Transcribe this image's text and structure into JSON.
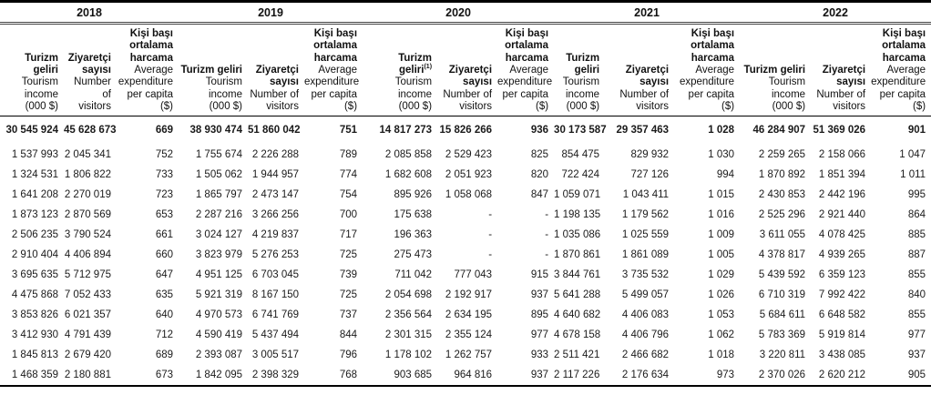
{
  "table": {
    "years": [
      "2018",
      "2019",
      "2020",
      "2021",
      "2022"
    ],
    "headers": [
      {
        "tr": [
          "Turizm geliri"
        ],
        "en": [
          "Tourism",
          "income",
          "(000 $)"
        ]
      },
      {
        "tr": [
          "Ziyaretçi",
          "sayısı"
        ],
        "en": [
          "Number of",
          "visitors"
        ]
      },
      {
        "tr": [
          "Kişi başı",
          "ortalama",
          "harcama"
        ],
        "en": [
          "Average",
          "expenditure",
          "per capita",
          "($)"
        ]
      },
      {
        "tr": [
          "Turizm geliri"
        ],
        "en": [
          "Tourism",
          "income",
          "(000 $)"
        ]
      },
      {
        "tr": [
          "Ziyaretçi",
          "sayısı"
        ],
        "en": [
          "Number of",
          "visitors"
        ]
      },
      {
        "tr": [
          "Kişi başı",
          "ortalama",
          "harcama"
        ],
        "en": [
          "Average",
          "expenditure",
          "per capita",
          "($)"
        ]
      },
      {
        "tr": [
          "Turizm geliri"
        ],
        "footnote": "(1)",
        "en": [
          "Tourism",
          "income",
          "(000 $)"
        ]
      },
      {
        "tr": [
          "Ziyaretçi",
          "sayısı"
        ],
        "en": [
          "Number of",
          "visitors"
        ]
      },
      {
        "tr": [
          "Kişi başı",
          "ortalama",
          "harcama"
        ],
        "en": [
          "Average",
          "expenditure",
          "per capita",
          "($)"
        ]
      },
      {
        "tr": [
          "Turizm",
          "geliri"
        ],
        "en": [
          "Tourism",
          "income",
          "(000 $)"
        ]
      },
      {
        "tr": [
          "Ziyaretçi",
          "sayısı"
        ],
        "en": [
          "Number of",
          "visitors"
        ]
      },
      {
        "tr": [
          "Kişi başı",
          "ortalama",
          "harcama"
        ],
        "en": [
          "Average",
          "expenditure",
          "per capita",
          "($)"
        ]
      },
      {
        "tr": [
          "Turizm geliri"
        ],
        "en": [
          "Tourism",
          "income",
          "(000 $)"
        ]
      },
      {
        "tr": [
          "Ziyaretçi",
          "sayısı"
        ],
        "en": [
          "Number of",
          "visitors"
        ]
      },
      {
        "tr": [
          "Kişi başı",
          "ortalama",
          "harcama"
        ],
        "en": [
          "Average",
          "expenditure",
          "per capita",
          "($)"
        ]
      }
    ],
    "total_row": [
      "30 545 924",
      "45 628 673",
      "669",
      "38 930 474",
      "51 860 042",
      "751",
      "14 817 273",
      "15 826 266",
      "936",
      "30 173 587",
      "29 357 463",
      "1 028",
      "46 284 907",
      "51 369 026",
      "901"
    ],
    "rows": [
      [
        "1 537 993",
        "2 045 341",
        "752",
        "1 755 674",
        "2 226 288",
        "789",
        "2 085 858",
        "2 529 423",
        "825",
        "854 475",
        "829 932",
        "1 030",
        "2 259 265",
        "2 158 066",
        "1 047"
      ],
      [
        "1 324 531",
        "1 806 822",
        "733",
        "1 505 062",
        "1 944 957",
        "774",
        "1 682 608",
        "2 051 923",
        "820",
        "722 424",
        "727 126",
        "994",
        "1 870 892",
        "1 851 394",
        "1 011"
      ],
      [
        "1 641 208",
        "2 270 019",
        "723",
        "1 865 797",
        "2 473 147",
        "754",
        "895 926",
        "1 058 068",
        "847",
        "1 059 071",
        "1 043 411",
        "1 015",
        "2 430 853",
        "2 442 196",
        "995"
      ],
      [
        "1 873 123",
        "2 870 569",
        "653",
        "2 287 216",
        "3 266 256",
        "700",
        "175 638",
        "-",
        "-",
        "1 198 135",
        "1 179 562",
        "1 016",
        "2 525 296",
        "2 921 440",
        "864"
      ],
      [
        "2 506 235",
        "3 790 524",
        "661",
        "3 024 127",
        "4 219 837",
        "717",
        "196 363",
        "-",
        "-",
        "1 035 086",
        "1 025 559",
        "1 009",
        "3 611 055",
        "4 078 425",
        "885"
      ],
      [
        "2 910 404",
        "4 406 894",
        "660",
        "3 823 979",
        "5 276 253",
        "725",
        "275 473",
        "-",
        "-",
        "1 870 861",
        "1 861 089",
        "1 005",
        "4 378 817",
        "4 939 265",
        "887"
      ],
      [
        "3 695 635",
        "5 712 975",
        "647",
        "4 951 125",
        "6 703 045",
        "739",
        "711 042",
        "777 043",
        "915",
        "3 844 761",
        "3 735 532",
        "1 029",
        "5 439 592",
        "6 359 123",
        "855"
      ],
      [
        "4 475 868",
        "7 052 433",
        "635",
        "5 921 319",
        "8 167 150",
        "725",
        "2 054 698",
        "2 192 917",
        "937",
        "5 641 288",
        "5 499 057",
        "1 026",
        "6 710 319",
        "7 992 422",
        "840"
      ],
      [
        "3 853 826",
        "6 021 357",
        "640",
        "4 970 573",
        "6 741 769",
        "737",
        "2 356 564",
        "2 634 195",
        "895",
        "4 640 682",
        "4 406 083",
        "1 053",
        "5 684 611",
        "6 648 582",
        "855"
      ],
      [
        "3 412 930",
        "4 791 439",
        "712",
        "4 590 419",
        "5 437 494",
        "844",
        "2 301 315",
        "2 355 124",
        "977",
        "4 678 158",
        "4 406 796",
        "1 062",
        "5 783 369",
        "5 919 814",
        "977"
      ],
      [
        "1 845 813",
        "2 679 420",
        "689",
        "2 393 087",
        "3 005 517",
        "796",
        "1 178 102",
        "1 262 757",
        "933",
        "2 511 421",
        "2 466 682",
        "1 018",
        "3 220 811",
        "3 438 085",
        "937"
      ],
      [
        "1 468 359",
        "2 180 881",
        "673",
        "1 842 095",
        "2 398 329",
        "768",
        "903 685",
        "964 816",
        "937",
        "2 117 226",
        "2 176 634",
        "973",
        "2 370 026",
        "2 620 212",
        "905"
      ]
    ]
  }
}
